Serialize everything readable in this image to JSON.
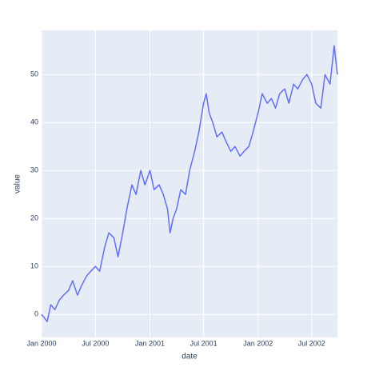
{
  "chart_data": {
    "type": "line",
    "xlabel": "date",
    "ylabel": "value",
    "x": [
      "2000-01-01",
      "2000-01-20",
      "2000-02-01",
      "2000-02-15",
      "2000-03-01",
      "2000-03-15",
      "2000-04-01",
      "2000-04-15",
      "2000-05-01",
      "2000-05-15",
      "2000-06-01",
      "2000-06-15",
      "2000-07-01",
      "2000-07-15",
      "2000-08-01",
      "2000-08-15",
      "2000-09-01",
      "2000-09-15",
      "2000-10-01",
      "2000-10-15",
      "2000-11-01",
      "2000-11-15",
      "2000-12-01",
      "2000-12-15",
      "2001-01-01",
      "2001-01-15",
      "2001-02-01",
      "2001-02-15",
      "2001-03-01",
      "2001-03-10",
      "2001-03-20",
      "2001-04-01",
      "2001-04-15",
      "2001-05-01",
      "2001-05-15",
      "2001-06-01",
      "2001-06-15",
      "2001-07-01",
      "2001-07-10",
      "2001-07-20",
      "2001-08-01",
      "2001-08-15",
      "2001-09-01",
      "2001-09-15",
      "2001-10-01",
      "2001-10-15",
      "2001-11-01",
      "2001-11-15",
      "2001-12-01",
      "2001-12-15",
      "2002-01-01",
      "2002-01-15",
      "2002-02-01",
      "2002-02-15",
      "2002-03-01",
      "2002-03-15",
      "2002-04-01",
      "2002-04-15",
      "2002-05-01",
      "2002-05-15",
      "2002-06-01",
      "2002-06-15",
      "2002-07-01",
      "2002-07-15",
      "2002-08-01",
      "2002-08-15",
      "2002-09-01",
      "2002-09-15",
      "2002-09-26"
    ],
    "series": [
      {
        "name": "value",
        "color": "#636efa",
        "values": [
          0,
          -1.5,
          2,
          1,
          3,
          4,
          5,
          7,
          4,
          6,
          8,
          9,
          10,
          9,
          14,
          17,
          16,
          12,
          17,
          22,
          27,
          25,
          30,
          27,
          30,
          26,
          27,
          25,
          22,
          17,
          20,
          22,
          26,
          25,
          30,
          34,
          38,
          44,
          46,
          42,
          40,
          37,
          38,
          36,
          34,
          35,
          33,
          34,
          35,
          38,
          42,
          46,
          44,
          45,
          43,
          46,
          47,
          44,
          48,
          47,
          49,
          50,
          48,
          44,
          43,
          50,
          48,
          56,
          50
        ]
      }
    ],
    "xlim": [
      "2000-01-01",
      "2002-09-26"
    ],
    "xticks": [
      {
        "value": "2000-01-01",
        "label": "Jan 2000"
      },
      {
        "value": "2000-07-01",
        "label": "Jul 2000"
      },
      {
        "value": "2001-01-01",
        "label": "Jan 2001"
      },
      {
        "value": "2001-07-01",
        "label": "Jul 2001"
      },
      {
        "value": "2002-01-01",
        "label": "Jan 2002"
      },
      {
        "value": "2002-07-01",
        "label": "Jul 2002"
      }
    ],
    "ylim": [
      -4.8,
      59.2
    ],
    "yticks": [
      0,
      10,
      20,
      30,
      40,
      50
    ],
    "grid": true
  }
}
